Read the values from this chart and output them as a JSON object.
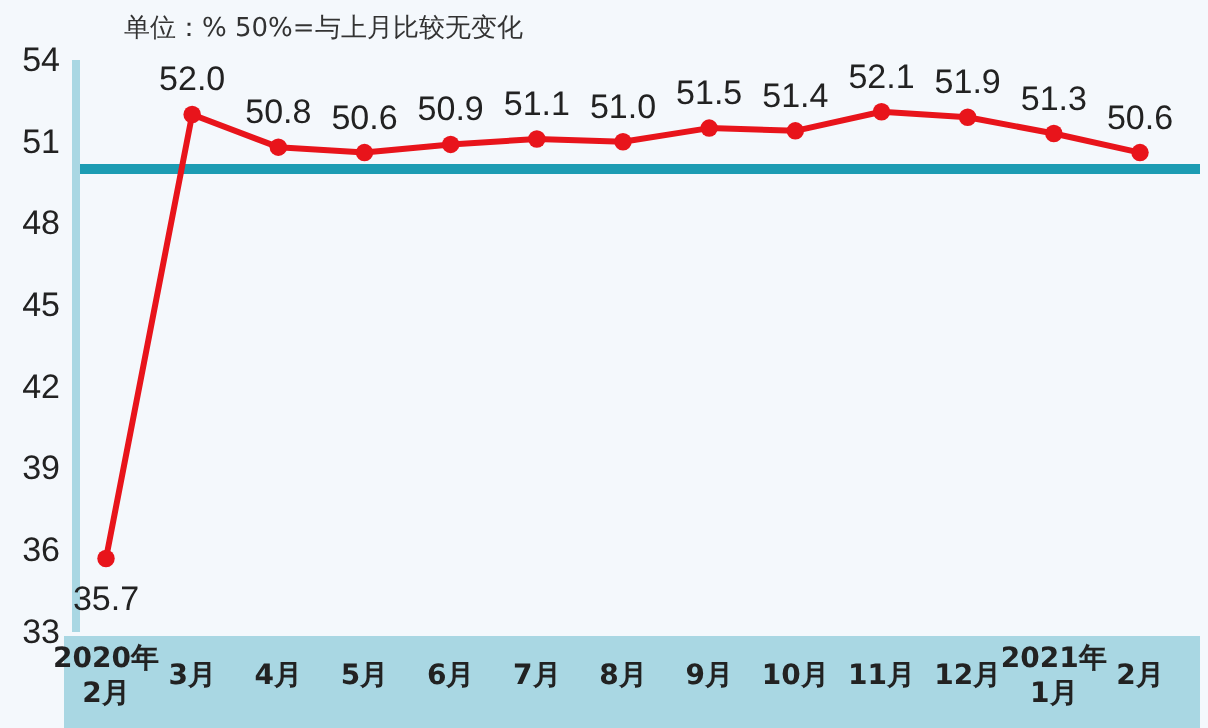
{
  "chart_data": {
    "type": "line",
    "annotations": [
      "单位：%  50%=与上月比较无变化"
    ],
    "categories": [
      "2020年2月",
      "3月",
      "4月",
      "5月",
      "6月",
      "7月",
      "8月",
      "9月",
      "10月",
      "11月",
      "12月",
      "2021年1月",
      "2月"
    ],
    "series": [
      {
        "color": "#e8141b",
        "values": [
          35.7,
          52.0,
          50.8,
          50.6,
          50.9,
          51.1,
          51.0,
          51.5,
          51.4,
          52.1,
          51.9,
          51.3,
          50.6
        ],
        "value_labels": [
          "35.7",
          "52.0",
          "50.8",
          "50.6",
          "50.9",
          "51.1",
          "51.0",
          "51.5",
          "51.4",
          "52.1",
          "51.9",
          "51.3",
          "50.6"
        ]
      }
    ],
    "ylim": [
      33,
      54
    ],
    "yticks": [
      33,
      36,
      39,
      42,
      45,
      48,
      51,
      54
    ],
    "marker": "circle",
    "grid": false,
    "ref_lines": [
      {
        "axis": "y",
        "value": 50,
        "color": "#1c9cb3"
      }
    ]
  }
}
